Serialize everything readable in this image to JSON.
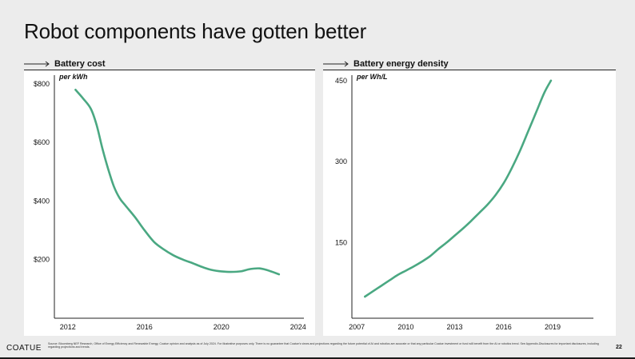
{
  "page": {
    "title": "Robot components have gotten better",
    "logo": "COATUE",
    "source": "Source: Bloomberg NEF Research, Office of Energy Efficiency and Renewable Energy, Coatue opinion and analysis as of July 2024. For illustrative purposes only. There is no guarantee that Coatue's views and projections regarding the future potential of AI and robotics are accurate or that any particular Coatue investment or fund will benefit from the AI or robotics trend. See Appendix-Disclosures for important disclosures, including regarding projections and trends.",
    "page_number": "22"
  },
  "colors": {
    "line": "#4aa882",
    "axis": "#222222",
    "card": "#ffffff",
    "background": "#ececec"
  },
  "chart_data": [
    {
      "type": "line",
      "title": "Battery cost",
      "unit_label": "per kWh",
      "xlabel": "",
      "ylabel": "",
      "xlim": [
        2011.3,
        2024.3
      ],
      "ylim": [
        0,
        830
      ],
      "x_ticks": [
        2012,
        2016,
        2020,
        2024
      ],
      "x_tick_labels": [
        "2012",
        "2016",
        "2020",
        "2024"
      ],
      "y_ticks": [
        200,
        400,
        600,
        800
      ],
      "y_tick_labels": [
        "$200",
        "$400",
        "$600",
        "$800"
      ],
      "grid": false,
      "series": [
        {
          "x": [
            2012.4,
            2012.8,
            2013.2,
            2013.5,
            2013.8,
            2014.1,
            2014.4,
            2014.7,
            2015.0,
            2015.5,
            2016.0,
            2016.5,
            2017.0,
            2017.5,
            2018.0,
            2018.5,
            2019.0,
            2019.5,
            2020.0,
            2020.5,
            2021.0,
            2021.5,
            2022.0,
            2022.5,
            2023.0
          ],
          "y": [
            780,
            750,
            715,
            660,
            580,
            510,
            450,
            410,
            385,
            345,
            300,
            260,
            235,
            215,
            200,
            188,
            175,
            165,
            160,
            158,
            160,
            168,
            170,
            162,
            150
          ]
        }
      ]
    },
    {
      "type": "line",
      "title": "Battery energy density",
      "unit_label": "per Wh/L",
      "xlabel": "",
      "ylabel": "",
      "xlim": [
        2006.7,
        2021.5
      ],
      "ylim": [
        10,
        460
      ],
      "x_ticks": [
        2007,
        2010,
        2013,
        2016,
        2019
      ],
      "x_tick_labels": [
        "2007",
        "2010",
        "2013",
        "2016",
        "2019"
      ],
      "y_ticks": [
        150,
        300,
        450
      ],
      "y_tick_labels": [
        "150",
        "300",
        "450"
      ],
      "grid": false,
      "series": [
        {
          "x": [
            2007.5,
            2008.0,
            2008.5,
            2009.0,
            2009.5,
            2010.0,
            2010.5,
            2011.0,
            2011.5,
            2012.0,
            2012.5,
            2013.0,
            2013.5,
            2014.0,
            2014.5,
            2015.0,
            2015.5,
            2016.0,
            2016.5,
            2017.0,
            2017.5,
            2018.0,
            2018.5,
            2018.9
          ],
          "y": [
            50,
            60,
            70,
            80,
            90,
            98,
            106,
            115,
            125,
            138,
            150,
            163,
            176,
            190,
            205,
            220,
            238,
            260,
            288,
            320,
            356,
            392,
            428,
            450
          ]
        }
      ]
    }
  ]
}
